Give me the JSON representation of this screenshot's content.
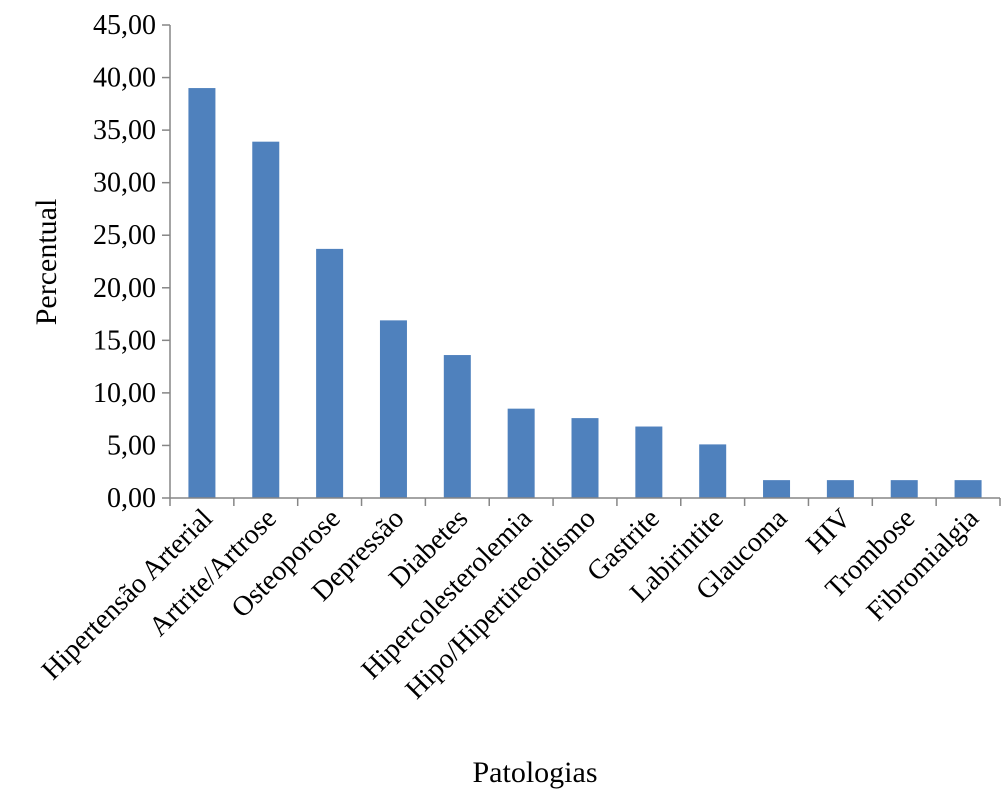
{
  "chart_data": {
    "type": "bar",
    "title": "",
    "xlabel": "Patologias",
    "ylabel": "Percentual",
    "ylim": [
      0,
      45
    ],
    "yticks": [
      "0,00",
      "5,00",
      "10,00",
      "15,00",
      "20,00",
      "25,00",
      "30,00",
      "35,00",
      "40,00",
      "45,00"
    ],
    "grid": false,
    "legend": "none",
    "bar_color": "#4f81bd",
    "categories": [
      "Hipertensão Arterial",
      "Artrite/Artrose",
      "Osteoporose",
      "Depressão",
      "Diabetes",
      "Hipercolesterolemia",
      "Hipo/Hipertireoidismo",
      "Gastrite",
      "Labirintite",
      "Glaucoma",
      "HIV",
      "Trombose",
      "Fibromialgia"
    ],
    "values": [
      39.0,
      33.9,
      23.7,
      16.9,
      13.6,
      8.5,
      7.6,
      6.8,
      5.1,
      1.7,
      1.7,
      1.7,
      1.7
    ]
  }
}
